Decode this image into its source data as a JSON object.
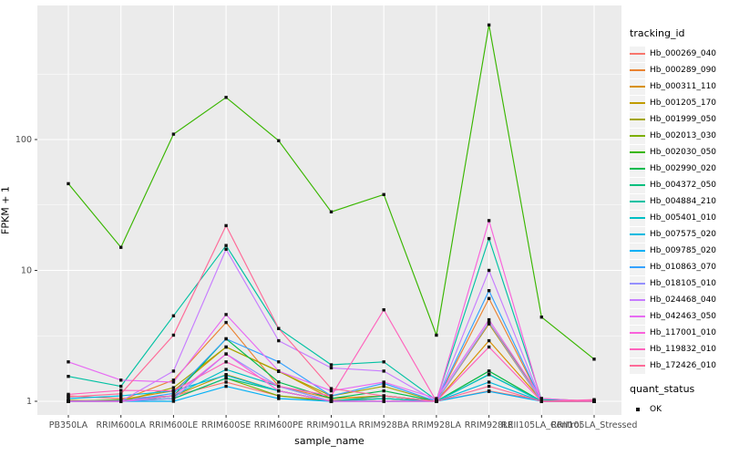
{
  "chart_data": {
    "type": "line",
    "title": "",
    "xlabel": "sample_name",
    "ylabel": "FPKM + 1",
    "x_scale": "categorical",
    "y_scale": "log10",
    "ylim": [
      0.9,
      1100
    ],
    "y_ticks": [
      1,
      10,
      100
    ],
    "y_tick_labels": [
      "1",
      "10",
      "100"
    ],
    "y_minor_ticks": [
      3.162,
      31.623,
      316.228
    ],
    "grid": true,
    "legend_position": "right",
    "legend_titles": {
      "tracking": "tracking_id",
      "quant": "quant_status"
    },
    "quant_status": {
      "label": "OK",
      "shape": "square",
      "color": "#111111"
    },
    "categories": [
      "PB350LA",
      "RRIM600LA",
      "RRIM600LE",
      "RRIM600SE",
      "RRIM600PE",
      "RRIM901LA",
      "RRIM928BA",
      "RRIM928LA",
      "RRIM928LE",
      "RRII105LA_Control",
      "RRII105LA_Stressed"
    ],
    "series": [
      {
        "name": "Hb_000269_040",
        "color": "#F8766D",
        "values": [
          1.1,
          1.05,
          1.1,
          1.4,
          1.1,
          1.02,
          1.05,
          1.0,
          1.2,
          1.02,
          1.0
        ]
      },
      {
        "name": "Hb_000289_090",
        "color": "#EA8331",
        "values": [
          1.0,
          1.02,
          1.45,
          4.0,
          1.3,
          1.05,
          1.1,
          1.0,
          6.1,
          1.0,
          1.0
        ]
      },
      {
        "name": "Hb_000311_110",
        "color": "#D89000",
        "values": [
          1.0,
          1.03,
          1.2,
          2.6,
          1.7,
          1.05,
          1.1,
          1.0,
          2.9,
          1.02,
          1.0
        ]
      },
      {
        "name": "Hb_001205_170",
        "color": "#C09B00",
        "values": [
          1.0,
          1.0,
          1.1,
          1.6,
          1.2,
          1.0,
          1.05,
          1.0,
          3.9,
          1.0,
          1.0
        ]
      },
      {
        "name": "Hb_001999_050",
        "color": "#A3A500",
        "values": [
          1.02,
          1.0,
          1.27,
          2.6,
          1.69,
          1.1,
          1.3,
          1.0,
          4.0,
          1.05,
          1.0
        ]
      },
      {
        "name": "Hb_002013_030",
        "color": "#7CAE00",
        "values": [
          1.0,
          1.0,
          1.05,
          1.5,
          1.1,
          1.0,
          1.05,
          1.0,
          1.7,
          1.0,
          1.02
        ]
      },
      {
        "name": "Hb_002030_050",
        "color": "#39B600",
        "values": [
          46,
          15,
          110,
          210,
          98,
          28,
          38,
          3.2,
          750,
          4.4,
          2.1
        ]
      },
      {
        "name": "Hb_002990_020",
        "color": "#00BB4E",
        "values": [
          1.0,
          1.0,
          1.1,
          3.0,
          1.4,
          1.05,
          1.2,
          1.0,
          1.7,
          1.0,
          1.0
        ]
      },
      {
        "name": "Hb_004372_050",
        "color": "#00BF7D",
        "values": [
          1.0,
          1.02,
          1.05,
          1.5,
          1.2,
          1.0,
          1.1,
          1.0,
          1.6,
          1.0,
          1.0
        ]
      },
      {
        "name": "Hb_004884_210",
        "color": "#00C1A3",
        "values": [
          1.55,
          1.3,
          4.5,
          15.5,
          3.6,
          1.9,
          2.0,
          1.02,
          17.5,
          1.03,
          1.0
        ]
      },
      {
        "name": "Hb_005401_010",
        "color": "#00BFC4",
        "values": [
          1.0,
          1.0,
          1.1,
          1.75,
          1.3,
          1.0,
          1.05,
          1.0,
          1.6,
          1.0,
          1.0
        ]
      },
      {
        "name": "Hb_007575_020",
        "color": "#00BAE0",
        "values": [
          1.05,
          1.1,
          1.2,
          1.58,
          1.2,
          1.0,
          1.0,
          1.0,
          1.4,
          1.0,
          1.0
        ]
      },
      {
        "name": "Hb_009785_020",
        "color": "#00B0F6",
        "values": [
          1.0,
          1.0,
          1.0,
          1.3,
          1.05,
          1.0,
          1.0,
          1.0,
          1.19,
          1.0,
          1.0
        ]
      },
      {
        "name": "Hb_010863_070",
        "color": "#35A2FF",
        "values": [
          1.0,
          1.0,
          1.15,
          3.0,
          2.0,
          1.1,
          1.37,
          1.0,
          7.0,
          1.0,
          1.0
        ]
      },
      {
        "name": "Hb_018105_010",
        "color": "#9590FF",
        "values": [
          1.0,
          1.0,
          1.05,
          2.3,
          1.3,
          1.0,
          1.0,
          1.0,
          4.0,
          1.0,
          1.0
        ]
      },
      {
        "name": "Hb_024468_040",
        "color": "#C77CFF",
        "values": [
          1.0,
          1.0,
          1.7,
          14.5,
          2.9,
          1.8,
          1.7,
          1.0,
          10.0,
          1.0,
          1.0
        ]
      },
      {
        "name": "Hb_042463_050",
        "color": "#E76BF3",
        "values": [
          2.0,
          1.45,
          1.4,
          4.6,
          1.7,
          1.2,
          1.4,
          1.05,
          4.2,
          1.05,
          1.0
        ]
      },
      {
        "name": "Hb_117001_010",
        "color": "#FA62DB",
        "values": [
          1.0,
          1.0,
          1.1,
          2.3,
          1.2,
          1.0,
          1.0,
          1.0,
          24.0,
          1.0,
          1.0
        ]
      },
      {
        "name": "Hb_119832_010",
        "color": "#FF62BC",
        "values": [
          1.13,
          1.21,
          1.2,
          2.0,
          1.3,
          1.1,
          5.0,
          1.0,
          2.6,
          1.0,
          1.03
        ]
      },
      {
        "name": "Hb_172426_010",
        "color": "#FF6A98",
        "values": [
          1.08,
          1.14,
          3.2,
          22.0,
          3.6,
          1.25,
          1.1,
          1.0,
          1.3,
          1.0,
          1.0
        ]
      }
    ]
  },
  "ui": {
    "colors": {
      "panel_bg": "#EBEBEB",
      "grid": "#FFFFFF",
      "tick_text": "#4D4D4D",
      "tick_mark": "#333333",
      "point": "#111111",
      "legend_key_bg": "#F2F2F2"
    }
  }
}
